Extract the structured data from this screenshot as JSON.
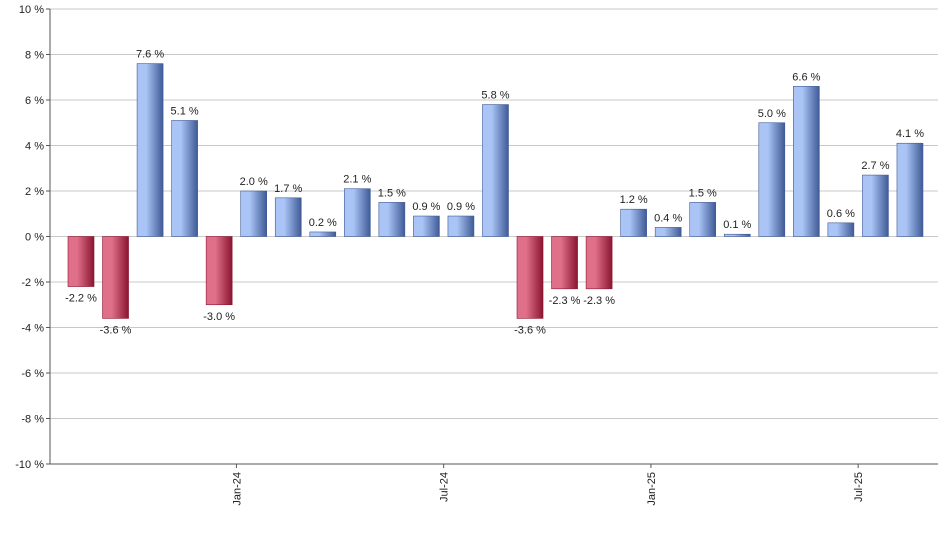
{
  "chart_data": {
    "type": "bar",
    "title": "",
    "xlabel": "",
    "ylabel": "",
    "ylim": [
      -10,
      10
    ],
    "y_ticks": [
      -10,
      -8,
      -6,
      -4,
      -2,
      0,
      2,
      4,
      6,
      8,
      10
    ],
    "y_tick_suffix": " %",
    "grid": true,
    "values": [
      -2.2,
      -3.6,
      7.6,
      5.1,
      -3.0,
      2.0,
      1.7,
      0.2,
      2.1,
      1.5,
      0.9,
      0.9,
      5.8,
      -3.6,
      -2.3,
      -2.3,
      1.2,
      0.4,
      1.5,
      0.1,
      5.0,
      6.6,
      0.6,
      2.7,
      4.1
    ],
    "x_tick_labels": [
      {
        "label": "Jan-24",
        "after_bar_index": 4
      },
      {
        "label": "Jul-24",
        "after_bar_index": 10
      },
      {
        "label": "Jan-25",
        "after_bar_index": 16
      },
      {
        "label": "Jul-25",
        "after_bar_index": 22
      }
    ],
    "data_label_suffix": " %",
    "colors": {
      "positive_light": "#a9c4f5",
      "positive_dark": "#3f5a96",
      "negative_light": "#e0708a",
      "negative_dark": "#8a1530",
      "grid": "#c8c8c8",
      "axis": "#555555"
    }
  }
}
